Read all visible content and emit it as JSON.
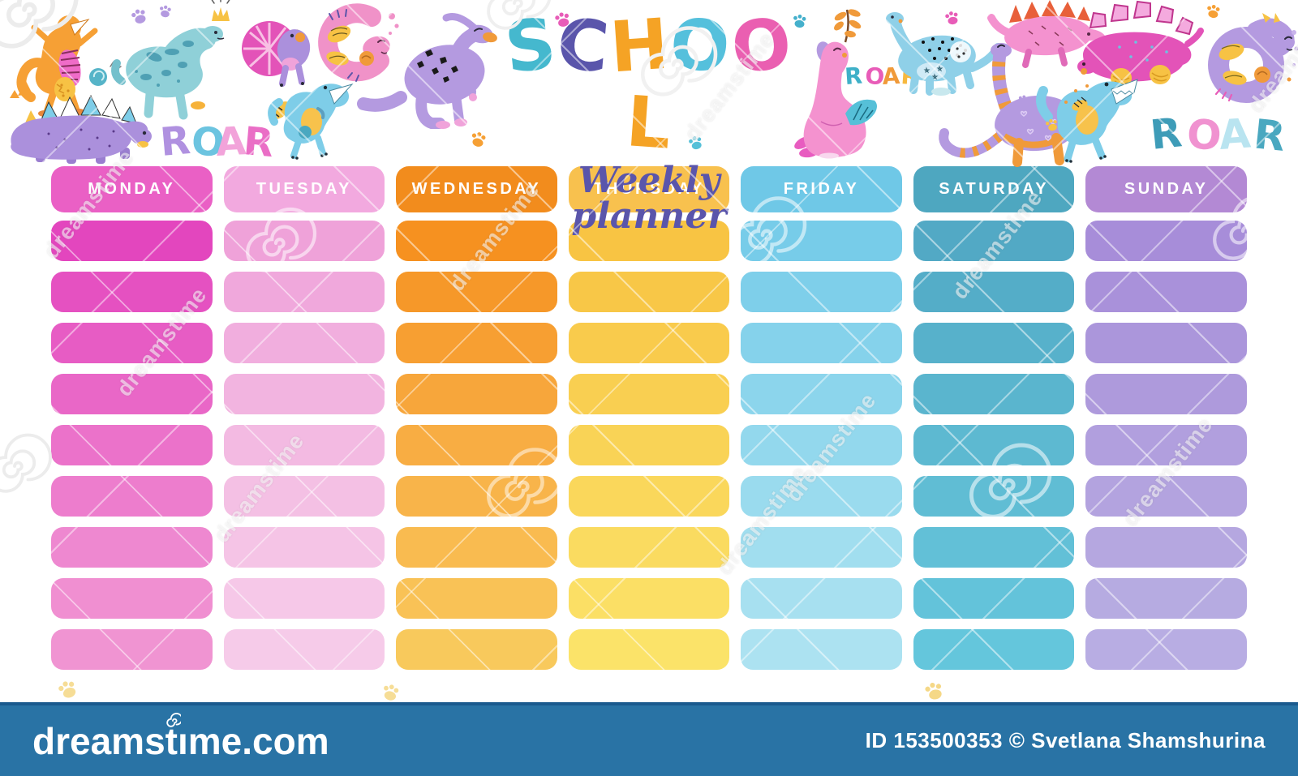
{
  "page": {
    "background": "#ffffff"
  },
  "title": {
    "word": "SCHOOL",
    "letters": [
      {
        "char": "S",
        "color": "#45b8ce"
      },
      {
        "char": "C",
        "color": "#5a55ab"
      },
      {
        "char": "H",
        "color": "#f5a325"
      },
      {
        "char": "O",
        "color": "#55c0dc"
      },
      {
        "char": "O",
        "color": "#ea5fb1"
      },
      {
        "char": "L",
        "color": "#f5a325"
      }
    ],
    "subtitle": "Weekly planner",
    "subtitle_color": "#5a55ab"
  },
  "decor": {
    "roar_left": {
      "letters": [
        {
          "char": "R",
          "color": "#b091e0"
        },
        {
          "char": "O",
          "color": "#6cc4e0"
        },
        {
          "char": "A",
          "color": "#f2a3da"
        },
        {
          "char": "R",
          "color": "#ea6ec6"
        }
      ]
    },
    "roar_small": {
      "letters": [
        {
          "char": "R",
          "color": "#3fb0c8"
        },
        {
          "char": "O",
          "color": "#e85cb8"
        },
        {
          "char": "A",
          "color": "#f09a3a"
        },
        {
          "char": "R",
          "color": "#f7b93f"
        }
      ]
    },
    "roar_right": {
      "letters": [
        {
          "char": "R",
          "color": "#3e9cb8"
        },
        {
          "char": "O",
          "color": "#f092d0"
        },
        {
          "char": "A",
          "color": "#b9e4f0"
        },
        {
          "char": "R",
          "color": "#4aa8c0"
        }
      ]
    },
    "dinos": [
      "trex-orange",
      "sauropod-teal",
      "frilled-dino",
      "trex-blue-left",
      "stegosaurus-purple",
      "curled-dino-pink",
      "parasaurolophus-purple",
      "sauropod-sitting-pink",
      "bronto-blue",
      "diplodocus-striped-purple",
      "spinosaurus-pink",
      "stegosaurus-pink",
      "curled-dino-purple",
      "trex-blue-right"
    ]
  },
  "planner": {
    "days": [
      {
        "label": "MONDAY",
        "header_color": "#ea60c5",
        "cells": [
          "#e346be",
          "#e551c1",
          "#e75cc4",
          "#e967c7",
          "#eb72ca",
          "#ed7dcd",
          "#ee88d0",
          "#f08fd1",
          "#f094d2"
        ]
      },
      {
        "label": "TUESDAY",
        "header_color": "#f2a9df",
        "cells": [
          "#efa2d9",
          "#f0a8dc",
          "#f1aede",
          "#f2b4e0",
          "#f3bae2",
          "#f4c0e4",
          "#f5c4e6",
          "#f6c8e8",
          "#f6cbe9"
        ]
      },
      {
        "label": "WEDNESDAY",
        "header_color": "#f28c1d",
        "cells": [
          "#f69120",
          "#f69829",
          "#f79f32",
          "#f7a63b",
          "#f8ad43",
          "#f8b44a",
          "#f9bb50",
          "#f9c256",
          "#f8c95c"
        ]
      },
      {
        "label": "THURSDAY",
        "header_color": "#f8c14e",
        "cells": [
          "#f8c443",
          "#f8c747",
          "#f9cb4c",
          "#f9cf51",
          "#f9d356",
          "#fad75b",
          "#fadb60",
          "#fbdf65",
          "#fbe369"
        ]
      },
      {
        "label": "FRIDAY",
        "header_color": "#6fc8e7",
        "cells": [
          "#77cce9",
          "#7ecfea",
          "#85d2eb",
          "#8cd5ec",
          "#93d8ed",
          "#9adbee",
          "#a1deef",
          "#a7e0f0",
          "#ace2f1"
        ]
      },
      {
        "label": "SATURDAY",
        "header_color": "#4ea7c0",
        "cells": [
          "#52a9c5",
          "#54adc8",
          "#57b1cb",
          "#5ab5ce",
          "#5db9d1",
          "#60bdd4",
          "#62c0d7",
          "#63c3da",
          "#64c6dc"
        ]
      },
      {
        "label": "SUNDAY",
        "header_color": "#b389d4",
        "cells": [
          "#a78dd9",
          "#a991da",
          "#ab96db",
          "#ae9adc",
          "#b19fde",
          "#b3a3df",
          "#b5a7e0",
          "#b6abe1",
          "#b8ade3"
        ]
      }
    ]
  },
  "watermark": {
    "text": "dreamstime"
  },
  "footer": {
    "bar_color": "#2973a5",
    "logo_text": "dreamstime.com",
    "credit": "ID 153500353 © Svetlana Shamshurina"
  }
}
